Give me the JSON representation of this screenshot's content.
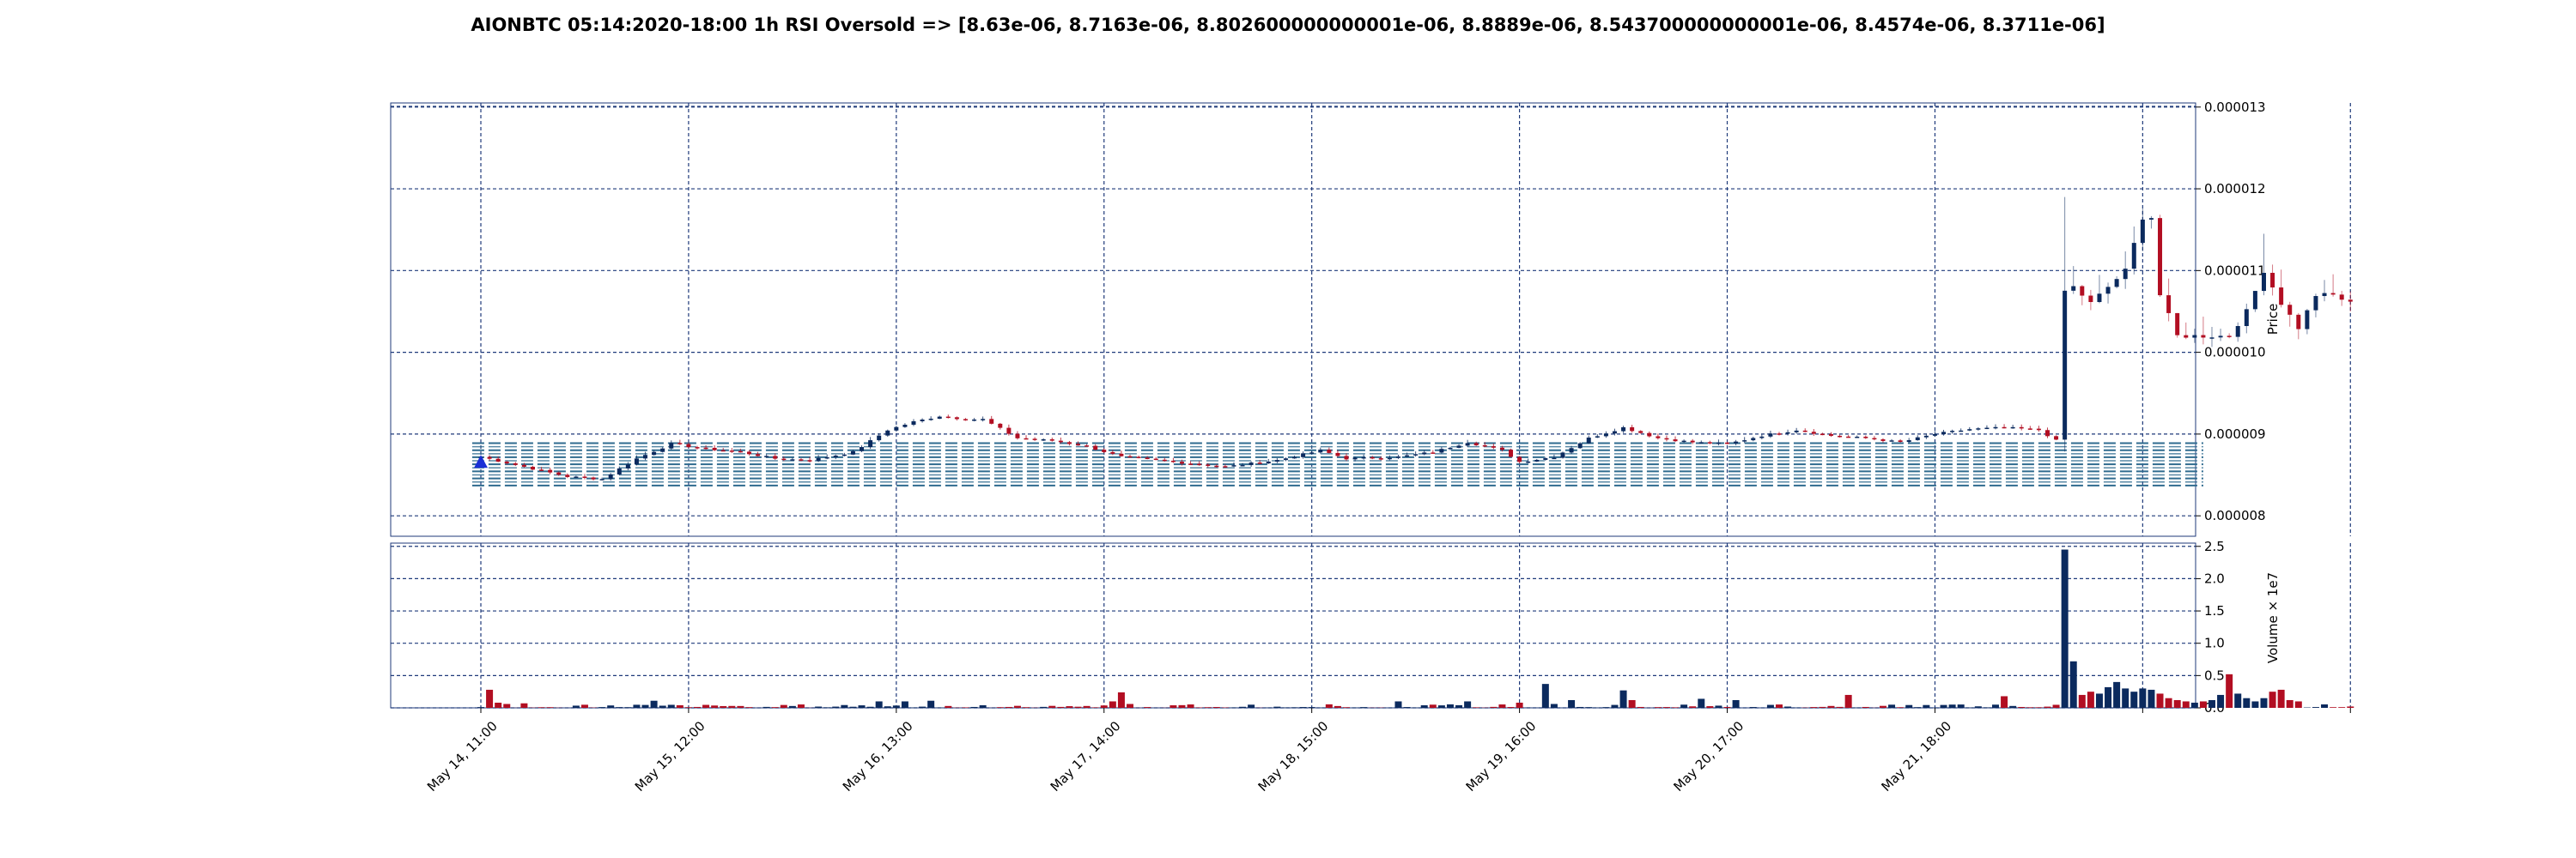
{
  "title": "AIONBTC 05:14:2020-18:00 1h RSI Oversold => [8.63e-06, 8.7163e-06, 8.802600000000001e-06, 8.8889e-06, 8.543700000000001e-06, 8.4574e-06, 8.3711e-06]",
  "colors": {
    "up": "#0b2a5e",
    "down": "#b20e22",
    "grid": "#1f3a7a",
    "level": "#2f6b8f",
    "marker": "#1a2fd6"
  },
  "chart_data": [
    {
      "type": "candlestick",
      "ylabel": "Price",
      "ylim": [
        7.75e-06,
        1.305e-05
      ],
      "yticks": [
        8e-06,
        9e-06,
        1e-05,
        1.1e-05,
        1.2e-05,
        1.3e-05
      ],
      "ytick_labels": [
        "0.000008",
        "0.000009",
        "0.000010",
        "0.000011",
        "0.000012",
        "0.000013"
      ],
      "grid": true,
      "rsi_levels": [
        8.63e-06,
        8.7163e-06,
        8.802600000000001e-06,
        8.8889e-06,
        8.543700000000001e-06,
        8.4574e-06,
        8.3711e-06
      ],
      "signal_marker": {
        "index": 0,
        "price": 8.65e-06,
        "shape": "triangle-up"
      },
      "close_keypoints": [
        [
          0,
          8.72e-06
        ],
        [
          5,
          8.6e-06
        ],
        [
          10,
          8.48e-06
        ],
        [
          14,
          8.45e-06
        ],
        [
          18,
          8.7e-06
        ],
        [
          22,
          8.88e-06
        ],
        [
          26,
          8.82e-06
        ],
        [
          30,
          8.78e-06
        ],
        [
          34,
          8.7e-06
        ],
        [
          38,
          8.68e-06
        ],
        [
          43,
          8.78e-06
        ],
        [
          47,
          9.05e-06
        ],
        [
          50,
          9.15e-06
        ],
        [
          53,
          9.22e-06
        ],
        [
          56,
          9.18e-06
        ],
        [
          58,
          9.18e-06
        ],
        [
          62,
          8.95e-06
        ],
        [
          66,
          8.92e-06
        ],
        [
          70,
          8.85e-06
        ],
        [
          74,
          8.72e-06
        ],
        [
          80,
          8.66e-06
        ],
        [
          86,
          8.6e-06
        ],
        [
          92,
          8.68e-06
        ],
        [
          97,
          8.8e-06
        ],
        [
          100,
          8.7e-06
        ],
        [
          106,
          8.72e-06
        ],
        [
          110,
          8.78e-06
        ],
        [
          114,
          8.9e-06
        ],
        [
          118,
          8.8e-06
        ],
        [
          120,
          8.66e-06
        ],
        [
          124,
          8.72e-06
        ],
        [
          128,
          8.95e-06
        ],
        [
          132,
          9.08e-06
        ],
        [
          136,
          8.95e-06
        ],
        [
          140,
          8.9e-06
        ],
        [
          144,
          8.88e-06
        ],
        [
          148,
          8.98e-06
        ],
        [
          152,
          9.05e-06
        ],
        [
          156,
          8.98e-06
        ],
        [
          160,
          8.95e-06
        ],
        [
          164,
          8.9e-06
        ],
        [
          168,
          9e-06
        ],
        [
          172,
          9.06e-06
        ],
        [
          176,
          9.08e-06
        ],
        [
          180,
          9.05e-06
        ],
        [
          182,
          8.92e-06
        ],
        [
          183,
          1.075e-05
        ],
        [
          184,
          1.08e-05
        ],
        [
          186,
          1.06e-05
        ],
        [
          188,
          1.08e-05
        ],
        [
          190,
          1.1e-05
        ],
        [
          192,
          1.165e-05
        ],
        [
          193,
          1.165e-05
        ],
        [
          194,
          1.07e-05
        ],
        [
          196,
          1.02e-05
        ],
        [
          198,
          1.02e-05
        ],
        [
          200,
          1.02e-05
        ],
        [
          202,
          1.02e-05
        ],
        [
          204,
          1.05e-05
        ],
        [
          206,
          1.1e-05
        ],
        [
          208,
          1.06e-05
        ],
        [
          210,
          1.03e-05
        ],
        [
          212,
          1.07e-05
        ],
        [
          214,
          1.07e-05
        ],
        [
          216,
          1.06e-05
        ]
      ]
    },
    {
      "type": "bar",
      "ylabel": "Volume",
      "scale_label": "1e7",
      "ylim": [
        0,
        2.55
      ],
      "yticks": [
        0,
        0.5,
        1.0,
        1.5,
        2.0,
        2.5
      ],
      "ytick_labels": [
        "0.0",
        "0.5",
        "1.0",
        "1.5",
        "2.0",
        "2.5"
      ],
      "grid": true,
      "volume_spikes": [
        [
          1,
          0.28
        ],
        [
          2,
          0.08
        ],
        [
          3,
          0.06
        ],
        [
          5,
          0.07
        ],
        [
          20,
          0.11
        ],
        [
          46,
          0.1
        ],
        [
          49,
          0.1
        ],
        [
          52,
          0.11
        ],
        [
          73,
          0.1
        ],
        [
          74,
          0.24
        ],
        [
          75,
          0.06
        ],
        [
          106,
          0.1
        ],
        [
          114,
          0.1
        ],
        [
          120,
          0.08
        ],
        [
          123,
          0.37
        ],
        [
          124,
          0.06
        ],
        [
          126,
          0.12
        ],
        [
          132,
          0.27
        ],
        [
          133,
          0.12
        ],
        [
          141,
          0.14
        ],
        [
          145,
          0.12
        ],
        [
          158,
          0.2
        ],
        [
          176,
          0.18
        ],
        [
          183,
          2.45
        ],
        [
          184,
          0.72
        ],
        [
          185,
          0.2
        ],
        [
          186,
          0.25
        ],
        [
          187,
          0.22
        ],
        [
          188,
          0.32
        ],
        [
          189,
          0.4
        ],
        [
          190,
          0.3
        ],
        [
          191,
          0.25
        ],
        [
          192,
          0.3
        ],
        [
          193,
          0.28
        ],
        [
          194,
          0.22
        ],
        [
          195,
          0.15
        ],
        [
          196,
          0.12
        ],
        [
          197,
          0.1
        ],
        [
          198,
          0.08
        ],
        [
          199,
          0.1
        ],
        [
          200,
          0.12
        ],
        [
          201,
          0.2
        ],
        [
          202,
          0.52
        ],
        [
          203,
          0.22
        ],
        [
          204,
          0.15
        ],
        [
          205,
          0.1
        ],
        [
          206,
          0.15
        ],
        [
          207,
          0.25
        ],
        [
          208,
          0.28
        ],
        [
          209,
          0.12
        ],
        [
          210,
          0.1
        ]
      ]
    }
  ],
  "x_axis": {
    "count": 217,
    "tick_positions": [
      0,
      24,
      48,
      72,
      96,
      120,
      144,
      168,
      192
    ],
    "tick_labels": [
      "May 14, 11:00",
      "May 15, 12:00",
      "May 16, 13:00",
      "May 17, 14:00",
      "May 18, 15:00",
      "May 19, 16:00",
      "May 20, 17:00",
      "May 21, 18:00",
      ""
    ]
  }
}
